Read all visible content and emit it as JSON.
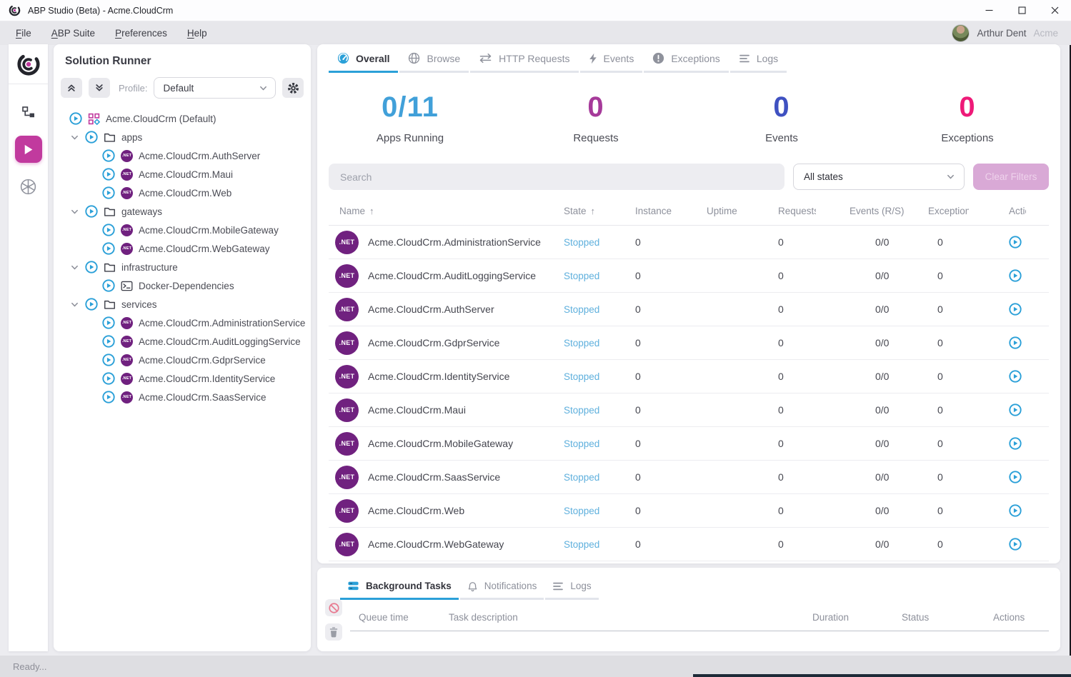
{
  "window": {
    "title": "ABP Studio (Beta) - Acme.CloudCrm",
    "controls": [
      {
        "key": "minimize",
        "icon": "minimize"
      },
      {
        "key": "maximize",
        "icon": "maximize"
      },
      {
        "key": "close",
        "icon": "close"
      }
    ]
  },
  "menu": {
    "items": [
      {
        "label": "File",
        "accel": 0
      },
      {
        "label": "ABP Suite",
        "accel": 0
      },
      {
        "label": "Preferences",
        "accel": 0
      },
      {
        "label": "Help",
        "accel": 0
      }
    ],
    "user": {
      "name": "Arthur Dent",
      "org": "Acme"
    }
  },
  "rail": {
    "items": [
      {
        "key": "solution-explorer",
        "icon": "explorer",
        "active": false
      },
      {
        "key": "solution-runner",
        "icon": "runner-play",
        "active": true
      },
      {
        "key": "kubernetes",
        "icon": "kubernetes",
        "active": false
      }
    ]
  },
  "solution_runner": {
    "title": "Solution Runner",
    "profile_label": "Profile:",
    "profile_value": "Default",
    "tree": [
      {
        "kind": "root",
        "icon": "app-group",
        "label": "Acme.CloudCrm (Default)",
        "chevron": false
      },
      {
        "kind": "folder",
        "icon": "folder",
        "label": "apps",
        "chevron": true
      },
      {
        "kind": "leaf",
        "icon": "dotnet",
        "label": "Acme.CloudCrm.AuthServer",
        "chevron": false
      },
      {
        "kind": "leaf",
        "icon": "dotnet",
        "label": "Acme.CloudCrm.Maui",
        "chevron": false
      },
      {
        "kind": "leaf",
        "icon": "dotnet",
        "label": "Acme.CloudCrm.Web",
        "chevron": false
      },
      {
        "kind": "folder",
        "icon": "folder",
        "label": "gateways",
        "chevron": true
      },
      {
        "kind": "leaf",
        "icon": "dotnet",
        "label": "Acme.CloudCrm.MobileGateway",
        "chevron": false
      },
      {
        "kind": "leaf",
        "icon": "dotnet",
        "label": "Acme.CloudCrm.WebGateway",
        "chevron": false
      },
      {
        "kind": "folder",
        "icon": "folder",
        "label": "infrastructure",
        "chevron": true
      },
      {
        "kind": "leaf",
        "icon": "terminal",
        "label": "Docker-Dependencies",
        "chevron": false
      },
      {
        "kind": "folder",
        "icon": "folder",
        "label": "services",
        "chevron": true
      },
      {
        "kind": "leaf",
        "icon": "dotnet",
        "label": "Acme.CloudCrm.AdministrationService",
        "chevron": false
      },
      {
        "kind": "leaf",
        "icon": "dotnet",
        "label": "Acme.CloudCrm.AuditLoggingService",
        "chevron": false
      },
      {
        "kind": "leaf",
        "icon": "dotnet",
        "label": "Acme.CloudCrm.GdprService",
        "chevron": false
      },
      {
        "kind": "leaf",
        "icon": "dotnet",
        "label": "Acme.CloudCrm.IdentityService",
        "chevron": false
      },
      {
        "kind": "leaf",
        "icon": "dotnet",
        "label": "Acme.CloudCrm.SaasService",
        "chevron": false
      }
    ]
  },
  "badges": {
    "dotnet": ".NET"
  },
  "icons": {
    "sort_asc": "↑"
  },
  "main": {
    "tabs": [
      {
        "key": "overall",
        "label": "Overall",
        "icon": "gauge",
        "active": true
      },
      {
        "key": "browse",
        "label": "Browse",
        "icon": "globe",
        "active": false
      },
      {
        "key": "http-requests",
        "label": "HTTP Requests",
        "icon": "arrows",
        "active": false
      },
      {
        "key": "events",
        "label": "Events",
        "icon": "bolt",
        "active": false
      },
      {
        "key": "exceptions",
        "label": "Exceptions",
        "icon": "exclamation",
        "active": false
      },
      {
        "key": "logs",
        "label": "Logs",
        "icon": "lines",
        "active": false
      }
    ],
    "stats": [
      {
        "value": "0/11",
        "label": "Apps Running",
        "color": "#41a0d9"
      },
      {
        "value": "0",
        "label": "Requests",
        "color": "#a63a9a"
      },
      {
        "value": "0",
        "label": "Events",
        "color": "#3f51c1"
      },
      {
        "value": "0",
        "label": "Exceptions",
        "color": "#ee1a78"
      }
    ],
    "filters": {
      "search_placeholder": "Search",
      "state_filter": "All states",
      "clear_button": "Clear Filters"
    },
    "table": {
      "columns": [
        {
          "label": "Name",
          "key": "name",
          "sorted": true
        },
        {
          "label": "State",
          "key": "state",
          "sorted": true
        },
        {
          "label": "Instance",
          "key": "instance",
          "sorted": false
        },
        {
          "label": "Uptime",
          "key": "uptime",
          "sorted": false
        },
        {
          "label": "Requests",
          "key": "requests",
          "sorted": false
        },
        {
          "label": "Events (R/S)",
          "key": "events",
          "sorted": false
        },
        {
          "label": "Exception",
          "key": "exception",
          "sorted": false
        },
        {
          "label": "Actions",
          "key": "actions",
          "sorted": false
        }
      ],
      "rows": [
        {
          "name": "Acme.CloudCrm.AdministrationService",
          "state": "Stopped",
          "instance": "0",
          "uptime": "",
          "requests": "0",
          "events": "0/0",
          "exceptions": "0"
        },
        {
          "name": "Acme.CloudCrm.AuditLoggingService",
          "state": "Stopped",
          "instance": "0",
          "uptime": "",
          "requests": "0",
          "events": "0/0",
          "exceptions": "0"
        },
        {
          "name": "Acme.CloudCrm.AuthServer",
          "state": "Stopped",
          "instance": "0",
          "uptime": "",
          "requests": "0",
          "events": "0/0",
          "exceptions": "0"
        },
        {
          "name": "Acme.CloudCrm.GdprService",
          "state": "Stopped",
          "instance": "0",
          "uptime": "",
          "requests": "0",
          "events": "0/0",
          "exceptions": "0"
        },
        {
          "name": "Acme.CloudCrm.IdentityService",
          "state": "Stopped",
          "instance": "0",
          "uptime": "",
          "requests": "0",
          "events": "0/0",
          "exceptions": "0"
        },
        {
          "name": "Acme.CloudCrm.Maui",
          "state": "Stopped",
          "instance": "0",
          "uptime": "",
          "requests": "0",
          "events": "0/0",
          "exceptions": "0"
        },
        {
          "name": "Acme.CloudCrm.MobileGateway",
          "state": "Stopped",
          "instance": "0",
          "uptime": "",
          "requests": "0",
          "events": "0/0",
          "exceptions": "0"
        },
        {
          "name": "Acme.CloudCrm.SaasService",
          "state": "Stopped",
          "instance": "0",
          "uptime": "",
          "requests": "0",
          "events": "0/0",
          "exceptions": "0"
        },
        {
          "name": "Acme.CloudCrm.Web",
          "state": "Stopped",
          "instance": "0",
          "uptime": "",
          "requests": "0",
          "events": "0/0",
          "exceptions": "0"
        },
        {
          "name": "Acme.CloudCrm.WebGateway",
          "state": "Stopped",
          "instance": "0",
          "uptime": "",
          "requests": "0",
          "events": "0/0",
          "exceptions": "0"
        }
      ]
    }
  },
  "bottom": {
    "tabs": [
      {
        "key": "background-tasks",
        "label": "Background Tasks",
        "icon": "stack",
        "active": true
      },
      {
        "key": "notifications",
        "label": "Notifications",
        "icon": "bell",
        "active": false
      },
      {
        "key": "logs",
        "label": "Logs",
        "icon": "lines",
        "active": false
      }
    ],
    "toolbar": [
      {
        "key": "cancel-tasks",
        "icon": "block"
      },
      {
        "key": "clear-tasks",
        "icon": "trash"
      }
    ],
    "columns": [
      "Queue time",
      "Task description",
      "Duration",
      "Status",
      "Actions"
    ]
  },
  "statusbar": {
    "text": "Ready..."
  },
  "colors": {
    "accent_blue": "#2ba0d8",
    "accent_magenta": "#c13a9e",
    "dotnet_purple": "#70217f",
    "stopped_state": "#5fb0dd",
    "clear_button_bg": "#d9a9d6"
  }
}
